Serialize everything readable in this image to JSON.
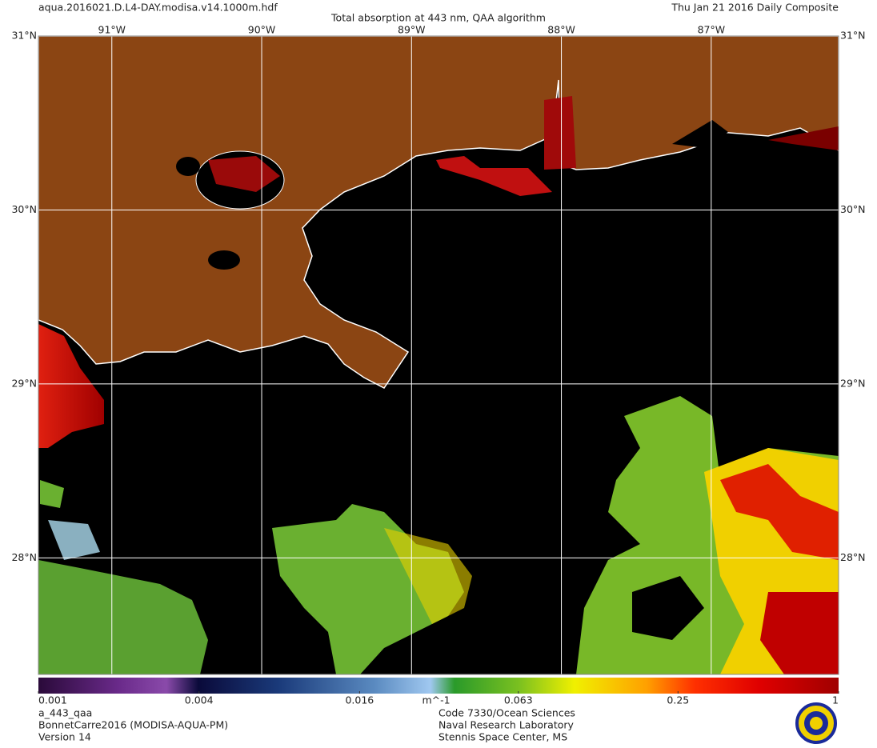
{
  "header": {
    "filename": "aqua.2016021.D.L4-DAY.modisa.v14.1000m.hdf",
    "title": "Total absorption at 443 nm, QAA algorithm",
    "date": "Thu Jan 21 2016 Daily Composite"
  },
  "map": {
    "lonlim": [
      -91.49,
      -86.15
    ],
    "latlim": [
      27.33,
      31
    ],
    "lon_ticks": [
      {
        "value": -91,
        "label": "91°W"
      },
      {
        "value": -90,
        "label": "90°W"
      },
      {
        "value": -89,
        "label": "89°W"
      },
      {
        "value": -88,
        "label": "88°W"
      },
      {
        "value": -87,
        "label": "87°W"
      }
    ],
    "lat_ticks": [
      {
        "value": 31,
        "label": "31°N"
      },
      {
        "value": 30,
        "label": "30°N"
      },
      {
        "value": 29,
        "label": "29°N"
      },
      {
        "value": 28,
        "label": "28°N"
      }
    ]
  },
  "colorbar": {
    "scale": "log",
    "range": [
      0.001,
      1
    ],
    "ticks": [
      0.001,
      0.004,
      0.016,
      0.063,
      0.25,
      1
    ],
    "units": "m^-1"
  },
  "footer": {
    "left": [
      "a_443_qaa",
      "BonnetCarre2016 (MODISA-AQUA-PM)",
      "Version 14"
    ],
    "center": [
      "Code 7330/Ocean Sciences",
      "Naval Research Laboratory",
      "Stennis Space Center, MS"
    ]
  }
}
